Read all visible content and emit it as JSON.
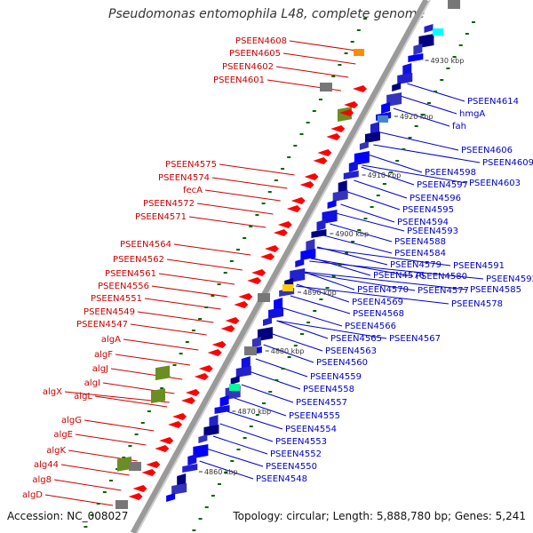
{
  "title": "Pseudomonas entomophila L48, complete genome",
  "accession": "Accession: NC_008027",
  "topology": "Topology: circular; Length: 5,888,780 bp; Genes: 5,241",
  "colors": {
    "backbone": "#9a9a9a",
    "forward_gene": "#ff0000",
    "reverse_gene": "#0000ff",
    "left_label": "#cc0000",
    "right_label": "#0000cc",
    "green_marker": "#006600"
  },
  "scale_ticks": [
    {
      "label": "4930 kbp"
    },
    {
      "label": "4920 kbp"
    },
    {
      "label": "4910 kbp"
    },
    {
      "label": "4900 kbp"
    },
    {
      "label": "4890 kbp"
    },
    {
      "label": "4880 kbp"
    },
    {
      "label": "4870 kbp"
    },
    {
      "label": "4860 kbp"
    }
  ],
  "left_labels": [
    "PSEEN4608",
    "PSEEN4605",
    "PSEEN4602",
    "PSEEN4601",
    "PSEEN4575",
    "PSEEN4574",
    "fecA",
    "PSEEN4572",
    "PSEEN4571",
    "PSEEN4564",
    "PSEEN4562",
    "PSEEN4561",
    "PSEEN4556",
    "PSEEN4551",
    "PSEEN4549",
    "PSEEN4547",
    "algA",
    "algF",
    "algJ",
    "algI",
    "algL",
    "algX",
    "algG",
    "algE",
    "algK",
    "alg44",
    "alg8",
    "algD"
  ],
  "right_labels": [
    "PSEEN4614",
    "hmgA",
    "fah",
    "PSEEN4606",
    "PSEEN4609",
    "PSEEN4598",
    "PSEEN4597",
    "PSEEN4603",
    "PSEEN4596",
    "PSEEN4595",
    "PSEEN4594",
    "PSEEN4593",
    "PSEEN4588",
    "PSEEN4584",
    "PSEEN4591",
    "PSEEN4579",
    "PSEEN4576",
    "PSEEN4580",
    "PSEEN4592",
    "PSEEN4585",
    "PSEEN4577",
    "PSEEN4570",
    "PSEEN4569",
    "PSEEN4578",
    "PSEEN4568",
    "PSEEN4566",
    "PSEEN4565",
    "PSEEN4567",
    "PSEEN4563",
    "PSEEN4560",
    "PSEEN4559",
    "PSEEN4558",
    "PSEEN4557",
    "PSEEN4555",
    "PSEEN4554",
    "PSEEN4553",
    "PSEEN4552",
    "PSEEN4550",
    "PSEEN4548"
  ]
}
